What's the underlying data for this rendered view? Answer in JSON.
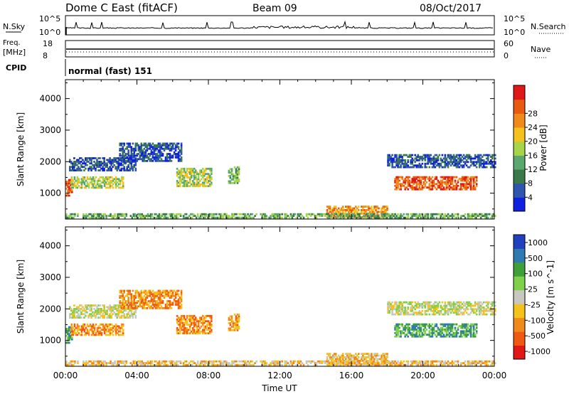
{
  "header": {
    "station": "Dome C East (fitACF)",
    "beam": "Beam 09",
    "date": "08/Oct/2017"
  },
  "summary_panels": {
    "nsky_label": "N.Sky",
    "nsearch_label": "N.Search",
    "nsky_ticks": [
      "10^5",
      "10^0"
    ],
    "nsearch_ticks": [
      "10^5",
      "10^0"
    ],
    "freq_label": "Freq.",
    "freq_unit": "[MHz]",
    "freq_ticks": [
      "18",
      "8"
    ],
    "nave_label": "Nave",
    "nave_ticks": [
      "60",
      "0"
    ],
    "cpid_label": "CPID",
    "cpid_value": "normal (fast) 151"
  },
  "colors": {
    "power": [
      "#1020e0",
      "#2f55b0",
      "#3a7a4a",
      "#5aa870",
      "#a8d44a",
      "#f4c21a",
      "#f08a1a",
      "#e85a10",
      "#e01818"
    ],
    "velocity": [
      "#e01818",
      "#f05a10",
      "#f08a1a",
      "#f4c21a",
      "#c8c8c0",
      "#7fd04a",
      "#3fa03a",
      "#2f7ab0",
      "#2040c0"
    ]
  },
  "chart_data": [
    {
      "type": "heatmap",
      "name": "power",
      "xlabel": "",
      "ylabel": "Slant Range [km]",
      "xlim": [
        0,
        24
      ],
      "ylim": [
        180,
        4600
      ],
      "x_ticks": [
        "00:00",
        "04:00",
        "08:00",
        "12:00",
        "16:00",
        "20:00",
        "00:00"
      ],
      "y_ticks": [
        1000,
        2000,
        3000,
        4000
      ],
      "colorbar_label": "Power [dB]",
      "colorbar_ticks": [
        "4",
        "8",
        "12",
        "16",
        "20",
        "24",
        "28"
      ],
      "blobs": [
        {
          "t0": 0.0,
          "t1": 0.4,
          "r0": 900,
          "r1": 1400,
          "level": 7
        },
        {
          "t0": 0.3,
          "t1": 3.2,
          "r0": 1150,
          "r1": 1500,
          "level": 4
        },
        {
          "t0": 0.2,
          "t1": 4.0,
          "r0": 1700,
          "r1": 2100,
          "level": 1
        },
        {
          "t0": 3.0,
          "t1": 6.5,
          "r0": 2000,
          "r1": 2600,
          "level": 1
        },
        {
          "t0": 6.2,
          "t1": 8.2,
          "r0": 1200,
          "r1": 1800,
          "level": 4
        },
        {
          "t0": 9.1,
          "t1": 9.7,
          "r0": 1300,
          "r1": 1800,
          "level": 3
        },
        {
          "t0": 14.6,
          "t1": 18.0,
          "r0": 220,
          "r1": 600,
          "level": 6
        },
        {
          "t0": 18.4,
          "t1": 23.0,
          "r0": 1100,
          "r1": 1500,
          "level": 7
        },
        {
          "t0": 18.0,
          "t1": 24.0,
          "r0": 1800,
          "r1": 2200,
          "level": 1
        },
        {
          "t0": 0.0,
          "t1": 24.0,
          "r0": 200,
          "r1": 350,
          "level": 3
        }
      ]
    },
    {
      "type": "heatmap",
      "name": "velocity",
      "xlabel": "Time UT",
      "ylabel": "Slant Range [km]",
      "xlim": [
        0,
        24
      ],
      "ylim": [
        180,
        4600
      ],
      "x_ticks": [
        "00:00",
        "04:00",
        "08:00",
        "12:00",
        "16:00",
        "20:00",
        "00:00"
      ],
      "y_ticks": [
        1000,
        2000,
        3000,
        4000
      ],
      "colorbar_label": "Velocity [m s^-1]",
      "colorbar_ticks": [
        "1000",
        "500",
        "100",
        "25",
        "-25",
        "-100",
        "-500",
        "-1000"
      ],
      "blobs": [
        {
          "t0": 0.0,
          "t1": 0.4,
          "r0": 900,
          "r1": 1400,
          "level": 6
        },
        {
          "t0": 0.3,
          "t1": 3.2,
          "r0": 1150,
          "r1": 1500,
          "level": 2
        },
        {
          "t0": 0.2,
          "t1": 4.0,
          "r0": 1700,
          "r1": 2100,
          "level": 4
        },
        {
          "t0": 3.0,
          "t1": 6.5,
          "r0": 2000,
          "r1": 2600,
          "level": 2
        },
        {
          "t0": 6.2,
          "t1": 8.2,
          "r0": 1200,
          "r1": 1800,
          "level": 2
        },
        {
          "t0": 9.1,
          "t1": 9.7,
          "r0": 1300,
          "r1": 1800,
          "level": 2
        },
        {
          "t0": 14.6,
          "t1": 18.0,
          "r0": 220,
          "r1": 600,
          "level": 3
        },
        {
          "t0": 18.4,
          "t1": 23.0,
          "r0": 1100,
          "r1": 1500,
          "level": 6
        },
        {
          "t0": 18.0,
          "t1": 24.0,
          "r0": 1800,
          "r1": 2200,
          "level": 4
        },
        {
          "t0": 0.0,
          "t1": 24.0,
          "r0": 200,
          "r1": 350,
          "level": 3
        }
      ]
    }
  ]
}
